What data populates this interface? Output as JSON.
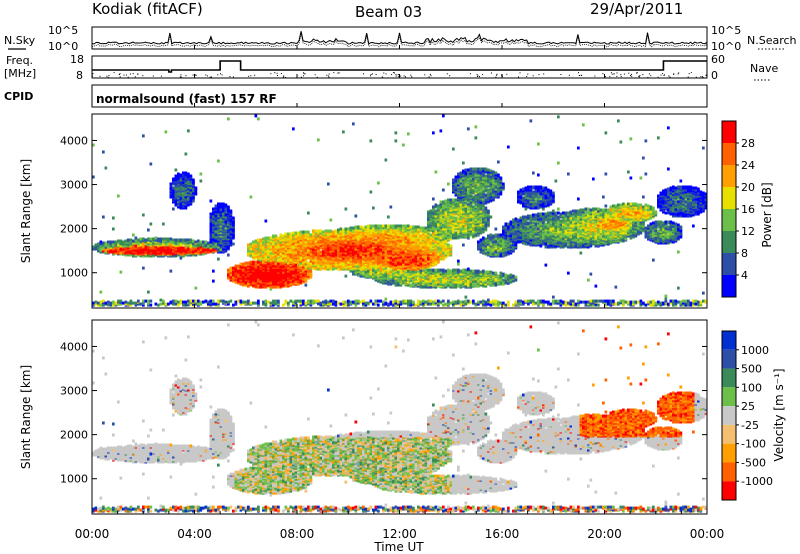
{
  "header": {
    "station": "Kodiak (fitACF)",
    "beam": "Beam 03",
    "date": "29/Apr/2011"
  },
  "panels": {
    "nsky_label": "N.Sky",
    "nsearch_label": "N.Search",
    "freq_label": "Freq.",
    "freq_unit": "[MHz]",
    "nave_label": "Nave",
    "cpid_label": "CPID",
    "cpid_value": "normalsound (fast) 157 RF",
    "noise_ticks": [
      "10^5",
      "10^0"
    ],
    "freq_ticks": [
      "18",
      "8"
    ],
    "nave_ticks": [
      "60",
      "0"
    ]
  },
  "colors": {
    "power": [
      "#0000ff",
      "#2d4fa8",
      "#3a8a5a",
      "#6cc04a",
      "#e8e000",
      "#ffa000",
      "#ff6000",
      "#ff0000"
    ],
    "velocity": [
      "#ff0000",
      "#ff6000",
      "#ffa000",
      "#f4c070",
      "#c8c8c8",
      "#6cc04a",
      "#3a8a5a",
      "#2d4fa8",
      "#0030d0"
    ]
  },
  "chart_data": [
    {
      "type": "heatmap",
      "name": "power",
      "ylabel": "Slant Range [km]",
      "yticks": [
        1000,
        2000,
        3000,
        4000
      ],
      "ylim": [
        200,
        4600
      ],
      "colorbar_label": "Power [dB]",
      "colorbar_ticks": [
        4,
        8,
        12,
        16,
        20,
        24,
        28
      ],
      "colorbar_range": [
        0,
        32
      ]
    },
    {
      "type": "heatmap",
      "name": "velocity",
      "ylabel": "Slant Range [km]",
      "yticks": [
        1000,
        2000,
        3000,
        4000
      ],
      "ylim": [
        200,
        4600
      ],
      "colorbar_label": "Velocity [m s⁻¹]",
      "colorbar_ticks": [
        "1000",
        "500",
        "100",
        "25",
        "-25",
        "-100",
        "-500",
        "-1000"
      ]
    }
  ],
  "xaxis": {
    "label": "Time UT",
    "ticks": [
      "00:00",
      "04:00",
      "08:00",
      "12:00",
      "16:00",
      "20:00",
      "00:00"
    ],
    "range_hours": [
      0,
      24
    ]
  }
}
